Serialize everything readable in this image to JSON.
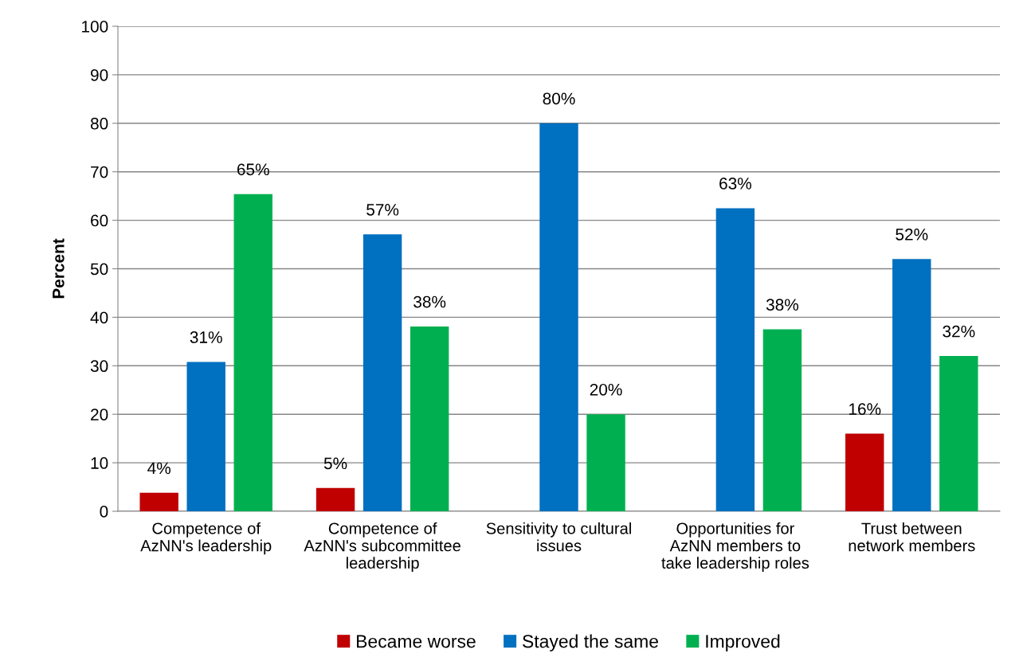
{
  "chart_data": {
    "type": "bar",
    "ylabel": "Percent",
    "categories": [
      "Competence of\nAzNN's leadership",
      "Competence of\nAzNN's subcommittee\nleadership",
      "Sensitivity to cultural\nissues",
      "Opportunities for\nAzNN members to\ntake leadership roles",
      "Trust between\nnetwork members"
    ],
    "series": [
      {
        "name": "Became worse",
        "color": "#c00000",
        "values": [
          3.8,
          4.8,
          null,
          null,
          16
        ],
        "value_labels": [
          "4%",
          "5%",
          null,
          null,
          "16%"
        ]
      },
      {
        "name": "Stayed the same",
        "color": "#0070c0",
        "values": [
          30.8,
          57.1,
          80,
          62.5,
          52
        ],
        "value_labels": [
          "31%",
          "57%",
          "80%",
          "63%",
          "52%"
        ]
      },
      {
        "name": "Improved",
        "color": "#00b050",
        "values": [
          65.4,
          38.1,
          20,
          37.5,
          32
        ],
        "value_labels": [
          "65%",
          "38%",
          "20%",
          "38%",
          "32%"
        ]
      }
    ],
    "ylim": [
      0,
      100
    ],
    "yticks": [
      0,
      10,
      20,
      30,
      40,
      50,
      60,
      70,
      80,
      90,
      100
    ],
    "grid": "y",
    "legend": "bottom"
  }
}
